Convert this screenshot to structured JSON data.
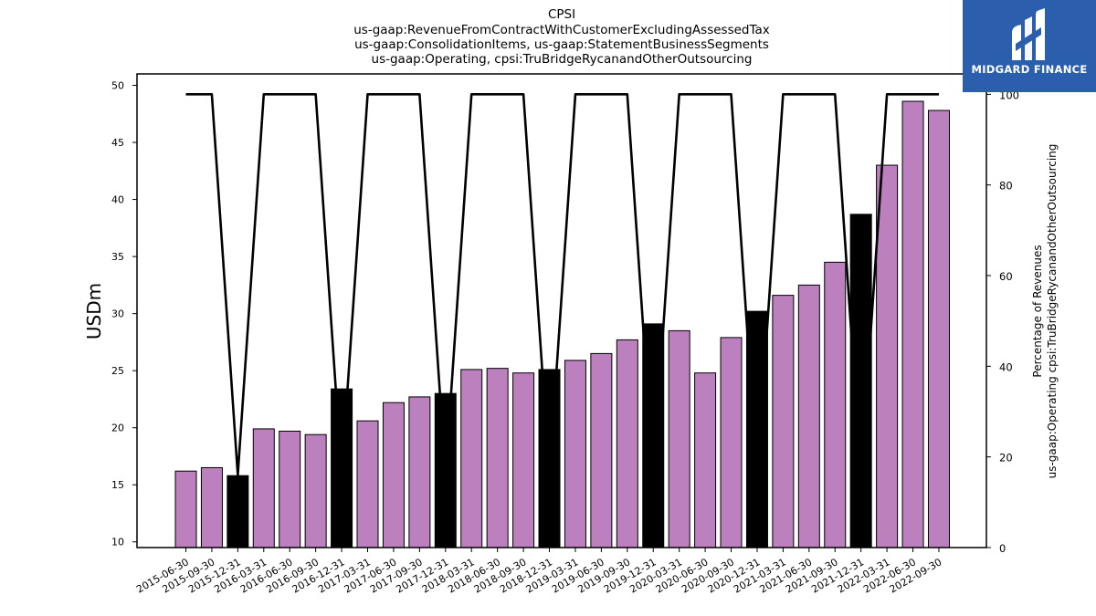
{
  "logo": {
    "text": "MIDGARD FINANCE",
    "icon": "midgard-logo-icon",
    "background": "#2b5fad"
  },
  "chart_data": {
    "type": "bar",
    "title": [
      "CPSI",
      "us-gaap:RevenueFromContractWithCustomerExcludingAssessedTax",
      "us-gaap:ConsolidationItems, us-gaap:StatementBusinessSegments",
      "us-gaap:Operating, cpsi:TruBridgeRycanandOtherOutsourcing"
    ],
    "ylabel": "USDm",
    "y2label": [
      "Percentage of Revenues",
      "us-gaap:Operating cpsi:TruBridgeRycanandOtherOutsourcing"
    ],
    "ylim": [
      9.5,
      51.0
    ],
    "y2lim": [
      0,
      104.5
    ],
    "yticks": [
      10,
      15,
      20,
      25,
      30,
      35,
      40,
      45,
      50
    ],
    "y2ticks": [
      0,
      20,
      40,
      60,
      80,
      100
    ],
    "categories": [
      "2015-06-30",
      "2015-09-30",
      "2015-12-31",
      "2016-03-31",
      "2016-06-30",
      "2016-09-30",
      "2016-12-31",
      "2017-03-31",
      "2017-06-30",
      "2017-09-30",
      "2017-12-31",
      "2018-03-31",
      "2018-06-30",
      "2018-09-30",
      "2018-12-31",
      "2019-03-31",
      "2019-06-30",
      "2019-09-30",
      "2019-12-31",
      "2020-03-31",
      "2020-06-30",
      "2020-09-30",
      "2020-12-31",
      "2021-03-31",
      "2021-06-30",
      "2021-09-30",
      "2021-12-31",
      "2022-03-31",
      "2022-06-30",
      "2022-09-30"
    ],
    "values": [
      16.2,
      16.5,
      15.8,
      19.9,
      19.7,
      19.4,
      23.4,
      20.6,
      22.2,
      22.7,
      23.0,
      25.1,
      25.2,
      24.8,
      25.1,
      25.9,
      26.5,
      27.7,
      29.1,
      28.5,
      24.8,
      27.9,
      30.2,
      31.6,
      32.5,
      34.5,
      38.7,
      43.0,
      48.6,
      47.8
    ],
    "bar_colors": [
      "#bb80bd",
      "#bb80bd",
      "#000000",
      "#bb80bd",
      "#bb80bd",
      "#bb80bd",
      "#000000",
      "#bb80bd",
      "#bb80bd",
      "#bb80bd",
      "#000000",
      "#bb80bd",
      "#bb80bd",
      "#bb80bd",
      "#000000",
      "#bb80bd",
      "#bb80bd",
      "#bb80bd",
      "#000000",
      "#bb80bd",
      "#bb80bd",
      "#bb80bd",
      "#000000",
      "#bb80bd",
      "#bb80bd",
      "#bb80bd",
      "#000000",
      "#bb80bd",
      "#bb80bd",
      "#bb80bd"
    ],
    "series": [
      {
        "type": "line",
        "axis": "right",
        "color": "#000000",
        "values": [
          100,
          100,
          16,
          100,
          100,
          100,
          16,
          100,
          100,
          100,
          16,
          100,
          100,
          100,
          16,
          100,
          100,
          100,
          16,
          100,
          100,
          100,
          16,
          100,
          100,
          100,
          16,
          100,
          100,
          100
        ]
      }
    ],
    "grid": false,
    "legend": "none"
  }
}
